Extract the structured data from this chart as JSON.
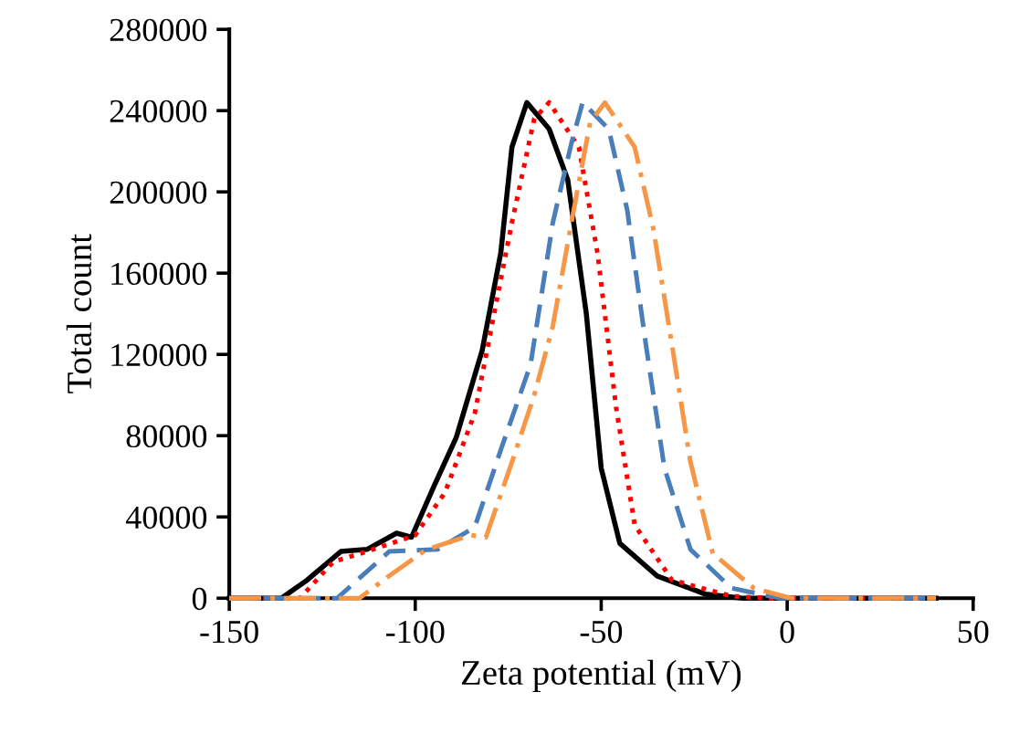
{
  "chart_data": {
    "type": "line",
    "xlabel": "Zeta potential (mV)",
    "ylabel": "Total count",
    "xlim": [
      -150,
      50
    ],
    "xticks": [
      -150,
      -100,
      -50,
      0,
      50
    ],
    "ylim": [
      0,
      280000
    ],
    "yticks": [
      0,
      40000,
      80000,
      120000,
      160000,
      200000,
      240000,
      280000
    ],
    "grid": false,
    "legend": false,
    "marker": "none",
    "series": [
      {
        "color": "#000000",
        "line_style": "solid",
        "x": [
          -150,
          -136,
          -129,
          -120,
          -113,
          -105,
          -101,
          -95,
          -89,
          -82,
          -77,
          -74,
          -70,
          -64,
          -59,
          -54,
          -50,
          -45,
          -35,
          -22,
          -12,
          40
        ],
        "values": [
          0,
          0,
          9000,
          23000,
          24000,
          32000,
          30000,
          55000,
          79000,
          122000,
          170000,
          222000,
          244000,
          231000,
          206000,
          140000,
          64000,
          27000,
          11000,
          2000,
          0,
          0
        ]
      },
      {
        "color": "#ff0000",
        "line_style": "dotted",
        "x": [
          -150,
          -131,
          -122,
          -113,
          -100,
          -92,
          -84,
          -74,
          -68,
          -64,
          -56,
          -51,
          -46,
          -41,
          -31,
          -15,
          -5,
          40
        ],
        "values": [
          0,
          0,
          18000,
          23000,
          31000,
          52000,
          91000,
          185000,
          236000,
          244000,
          222000,
          170000,
          94000,
          36000,
          9000,
          1000,
          0,
          0
        ]
      },
      {
        "color": "#4a7ebb",
        "line_style": "dashed",
        "x": [
          -150,
          -121,
          -107,
          -94,
          -84,
          -77,
          -69,
          -63,
          -58,
          -55,
          -48,
          -43,
          -38,
          -33,
          -26,
          -15,
          -2,
          40
        ],
        "values": [
          0,
          0,
          23000,
          24000,
          35000,
          73000,
          115000,
          185000,
          224000,
          244000,
          231000,
          191000,
          125000,
          64000,
          24000,
          5000,
          0,
          0
        ]
      },
      {
        "color": "#f79646",
        "line_style": "dashdot",
        "x": [
          -150,
          -115,
          -107,
          -97,
          -85,
          -81,
          -74,
          -68,
          -63,
          -58,
          -53,
          -49,
          -41,
          -36,
          -31,
          -26,
          -20,
          -9,
          1,
          40
        ],
        "values": [
          0,
          0,
          11000,
          24000,
          31000,
          30000,
          67000,
          100000,
          134000,
          185000,
          234000,
          244000,
          222000,
          182000,
          125000,
          67000,
          22000,
          5000,
          0,
          0
        ]
      }
    ]
  }
}
